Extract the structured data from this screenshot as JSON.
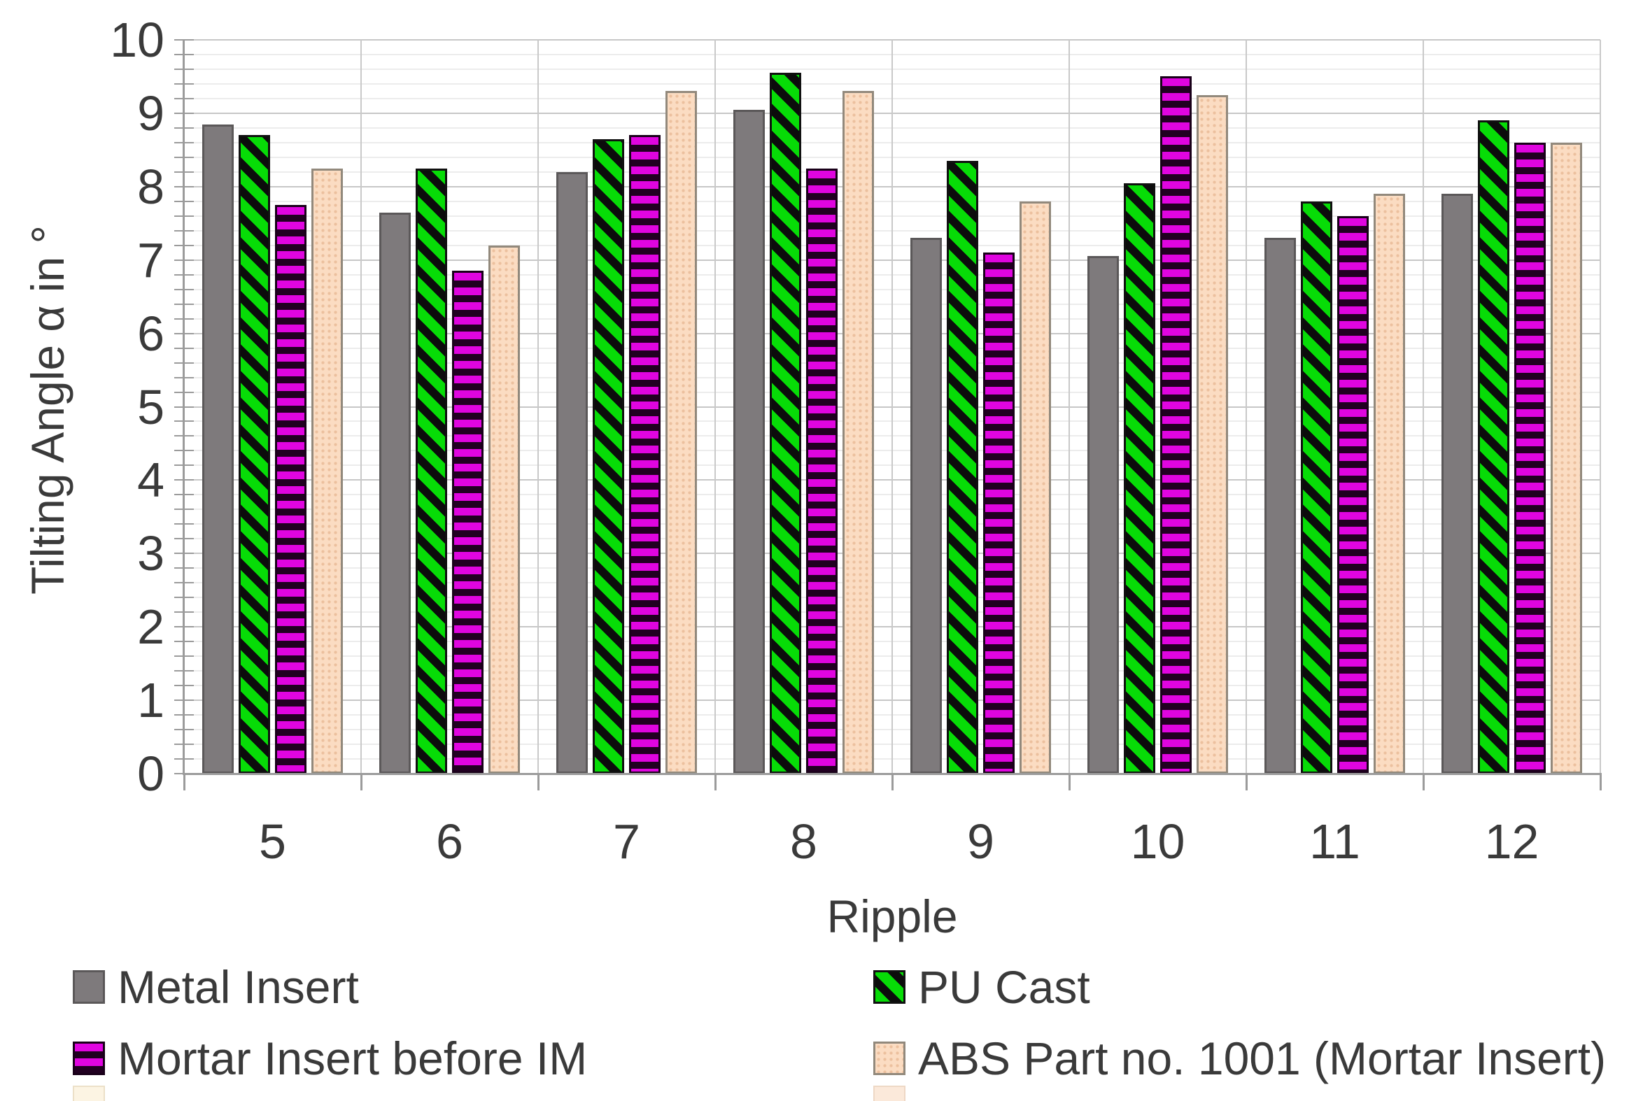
{
  "chart_data": {
    "type": "bar",
    "title": "",
    "ylabel": "Tilting Angle α in °",
    "xlabel": "Ripple",
    "ylim": [
      0,
      10
    ],
    "y_major_step": 1,
    "y_minor_step": 0.2,
    "y_tick_labels": [
      "0",
      "1",
      "2",
      "3",
      "4",
      "5",
      "6",
      "7",
      "8",
      "9",
      "10"
    ],
    "categories": [
      "5",
      "6",
      "7",
      "8",
      "9",
      "10",
      "11",
      "12"
    ],
    "series": [
      {
        "name": "Metal Insert",
        "pattern": "solid",
        "color": "#7e7a7c",
        "border_color": "#5b5859",
        "values": [
          8.85,
          7.65,
          8.2,
          9.05,
          7.3,
          7.05,
          7.3,
          7.9
        ]
      },
      {
        "name": "PU Cast",
        "pattern": "diagonal-stripes",
        "color": "#07dc07",
        "stripe_color": "#0c0c0c",
        "values": [
          8.7,
          8.25,
          8.65,
          9.55,
          8.35,
          8.05,
          7.8,
          8.9
        ]
      },
      {
        "name": "Mortar Insert before IM",
        "pattern": "horizontal-stripes",
        "color": "#e005e0",
        "stripe_color": "#210021",
        "values": [
          7.75,
          6.85,
          8.7,
          8.25,
          7.1,
          9.5,
          7.6,
          8.6
        ]
      },
      {
        "name": "ABS Part no. 1001 (Mortar Insert)",
        "pattern": "dots",
        "color": "#fbdcc2",
        "dot_color": "#ecc09e",
        "border_color": "#92897c",
        "values": [
          8.25,
          7.2,
          9.3,
          9.3,
          7.8,
          9.25,
          7.9,
          8.6
        ]
      }
    ],
    "grid": true,
    "legend_position": "bottom, two columns",
    "legend_columns": [
      [
        "Metal Insert",
        "Mortar Insert before IM"
      ],
      [
        "PU Cast",
        "ABS Part no. 1001 (Mortar Insert)"
      ]
    ],
    "clipped_legend_row": {
      "visible": true,
      "swatch_colors": [
        "#fcf4e3",
        "#fbe9da"
      ]
    }
  }
}
